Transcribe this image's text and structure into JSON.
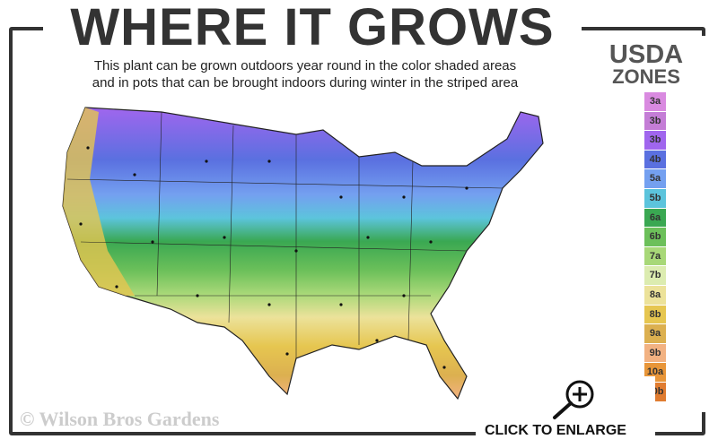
{
  "header": {
    "title": "WHERE IT GROWS",
    "subtitle_line1": "This plant can be grown outdoors year round in the color shaded areas",
    "subtitle_line2": "and in pots that can be brought indoors during winter in the striped area"
  },
  "legend": {
    "title_line1": "USDA",
    "title_line2": "ZONES",
    "zones": [
      {
        "label": "3a",
        "color": "#d98ae0"
      },
      {
        "label": "3b",
        "color": "#c47dd6"
      },
      {
        "label": "3b",
        "color": "#a066ee"
      },
      {
        "label": "4b",
        "color": "#5a70e0"
      },
      {
        "label": "5a",
        "color": "#74a0f0"
      },
      {
        "label": "5b",
        "color": "#5cc4dc"
      },
      {
        "label": "6a",
        "color": "#3aa852"
      },
      {
        "label": "6b",
        "color": "#6cc05a"
      },
      {
        "label": "7a",
        "color": "#a8d878"
      },
      {
        "label": "7b",
        "color": "#dcecb0"
      },
      {
        "label": "8a",
        "color": "#ece29a"
      },
      {
        "label": "8b",
        "color": "#e6c650"
      },
      {
        "label": "9a",
        "color": "#dcb050"
      },
      {
        "label": "9b",
        "color": "#f2b282"
      },
      {
        "label": "10a",
        "color": "#e8963a"
      },
      {
        "label": "10b",
        "color": "#e07c30"
      }
    ]
  },
  "footer": {
    "copyright": "© Wilson Bros Gardens",
    "enlarge_label": "CLICK TO ENLARGE",
    "enlarge_icon": "magnifier-plus-icon"
  }
}
